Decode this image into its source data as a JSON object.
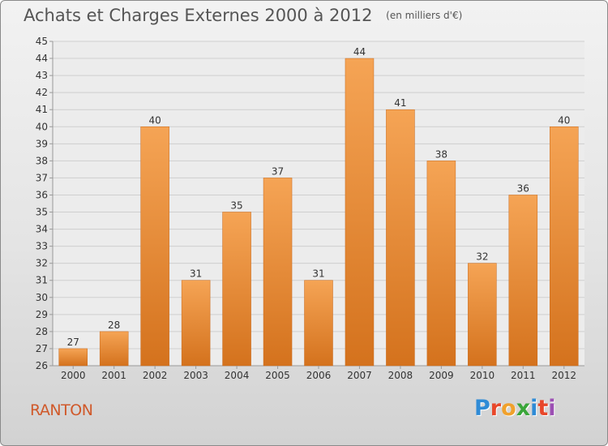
{
  "title": "Achats et Charges Externes 2000 à 2012",
  "unit": "(en milliers d'€)",
  "place": "RANTON",
  "logo": {
    "letters": [
      "P",
      "r",
      "o",
      "x",
      "i",
      "t",
      "i"
    ],
    "colors": [
      "#2f8bd6",
      "#e8472a",
      "#f0a12c",
      "#3aa63a",
      "#2f8bd6",
      "#e8472a",
      "#9c4fb3"
    ]
  },
  "chart_data": {
    "type": "bar",
    "categories": [
      "2000",
      "2001",
      "2002",
      "2003",
      "2004",
      "2005",
      "2006",
      "2007",
      "2008",
      "2009",
      "2010",
      "2011",
      "2012"
    ],
    "values": [
      27,
      28,
      40,
      31,
      35,
      37,
      31,
      44,
      41,
      38,
      32,
      36,
      40
    ],
    "ylim": [
      26,
      45
    ],
    "yticks": [
      26,
      27,
      28,
      29,
      30,
      31,
      32,
      33,
      34,
      35,
      36,
      37,
      38,
      39,
      40,
      41,
      42,
      43,
      44,
      45
    ],
    "grid": true,
    "bar_color_top": "#f5a455",
    "bar_color_bottom": "#d4721d"
  }
}
